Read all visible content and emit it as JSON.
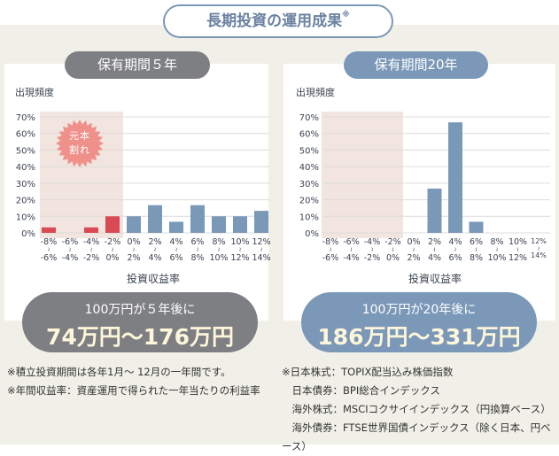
{
  "title": "長期投資の運用成果",
  "title_mark": "※",
  "chart_data": [
    {
      "type": "bar",
      "period_label": "保有期間５年",
      "ylabel": "出現頻度",
      "xlabel": "投資収益率",
      "yticks": [
        "0%",
        "10%",
        "20%",
        "30%",
        "40%",
        "50%",
        "60%",
        "70%"
      ],
      "ylim": [
        0,
        70
      ],
      "grid": true,
      "categories": [
        [
          "-8%",
          "-6%"
        ],
        [
          "-6%",
          "-4%"
        ],
        [
          "-4%",
          "-2%"
        ],
        [
          "-2%",
          "0%"
        ],
        [
          "0%",
          "2%"
        ],
        [
          "2%",
          "4%"
        ],
        [
          "4%",
          "6%"
        ],
        [
          "6%",
          "8%"
        ],
        [
          "8%",
          "10%"
        ],
        [
          "10%",
          "12%"
        ],
        [
          "12%",
          "14%"
        ]
      ],
      "values": [
        3.3,
        0,
        3.3,
        10,
        10,
        16.7,
        6.7,
        16.7,
        10,
        10,
        13.3
      ],
      "loss_badge": "元本割れ",
      "loss_badge_lines": [
        "元本",
        "割れ"
      ],
      "result_line1": "100万円が５年後に",
      "result_line2": "74万円〜176万円",
      "colors": {
        "loss": "#d94a55",
        "gain": "#7a98b8",
        "loss_zone": "#f2e4de",
        "pill": "#7e7f83"
      }
    },
    {
      "type": "bar",
      "period_label": "保有期間20年",
      "ylabel": "出現頻度",
      "xlabel": "投資収益率",
      "yticks": [
        "0%",
        "10%",
        "20%",
        "30%",
        "40%",
        "50%",
        "60%",
        "70%"
      ],
      "ylim": [
        0,
        70
      ],
      "grid": true,
      "categories": [
        [
          "-8%",
          "-6%"
        ],
        [
          "-6%",
          "-4%"
        ],
        [
          "-4%",
          "-2%"
        ],
        [
          "-2%",
          "0%"
        ],
        [
          "0%",
          "2%"
        ],
        [
          "2%",
          "4%"
        ],
        [
          "4%",
          "6%"
        ],
        [
          "6%",
          "8%"
        ],
        [
          "8%",
          "10%"
        ],
        [
          "10%",
          "12%"
        ],
        [
          "12%",
          "14%"
        ]
      ],
      "values": [
        0,
        0,
        0,
        0,
        0,
        26.7,
        66.7,
        6.7,
        0,
        0,
        0
      ],
      "result_line1": "100万円が20年後に",
      "result_line2": "186万円〜331万円",
      "colors": {
        "loss": "#d94a55",
        "gain": "#7a98b8",
        "loss_zone": "#f2e4de",
        "pill": "#7b98b8"
      }
    }
  ],
  "notes_left": [
    "※積立投資期間は各年1月～ 12月の一年間です。",
    "※年間収益率：資産運用で得られた一年当たりの利益率"
  ],
  "notes_right": [
    "※日本株式：TOPIX配当込み株価指数",
    "　日本債券：BPI総合インデックス",
    "　海外株式：MSCIコクサイインデックス（円換算ベース）",
    "　海外債券：FTSE世界国債インデックス（除く日本、円ベース）"
  ]
}
